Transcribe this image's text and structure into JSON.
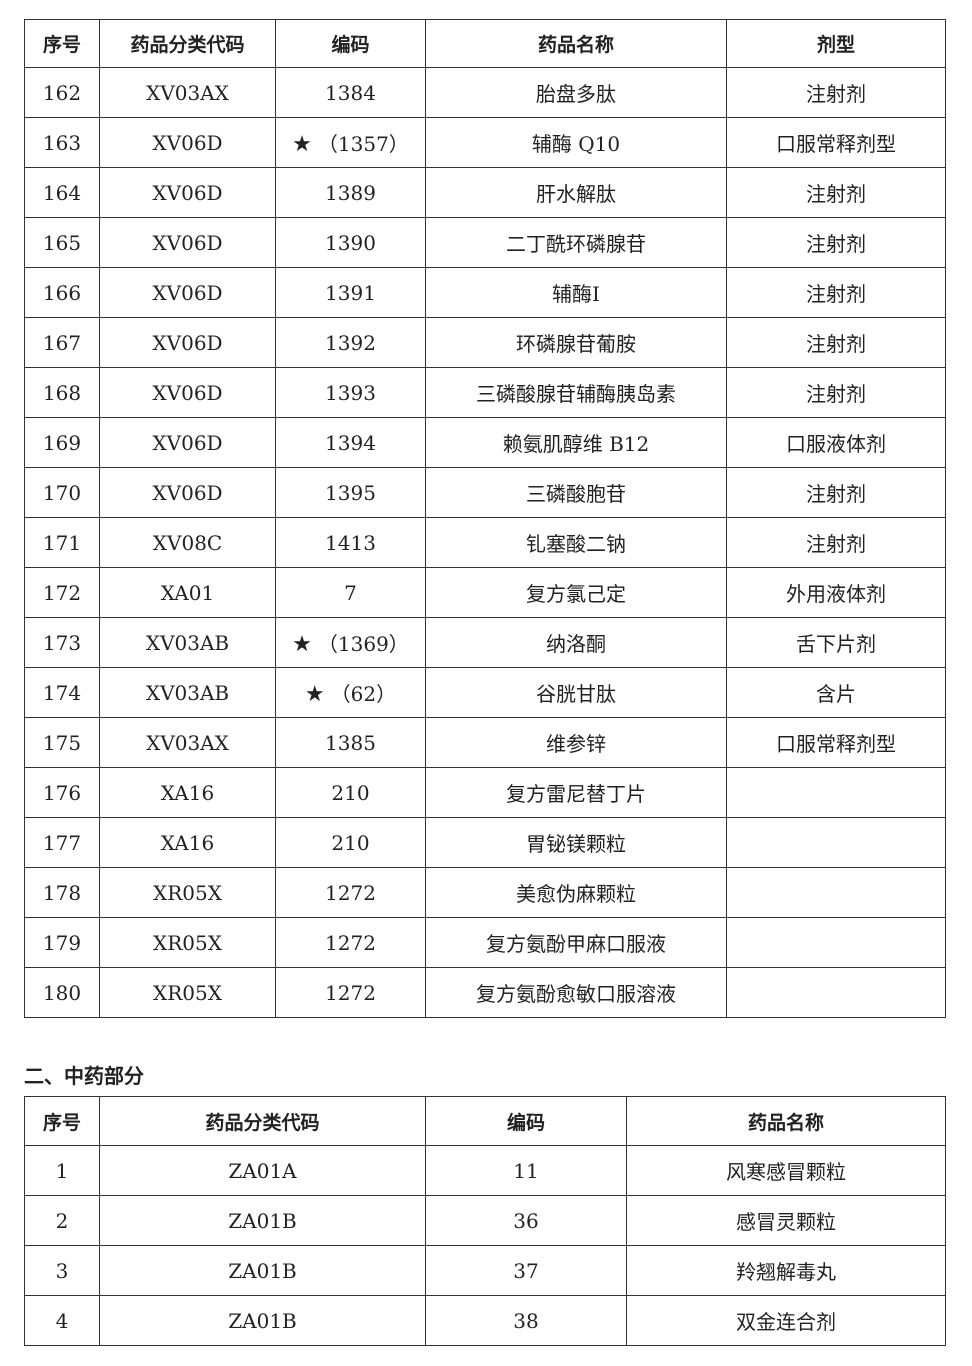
{
  "table1": {
    "headers": [
      "序号",
      "药品分类代码",
      "编码",
      "药品名称",
      "剂型"
    ],
    "rows": [
      {
        "no": "162",
        "cls": "XV03AX",
        "star": false,
        "code": "1384",
        "name": "胎盘多肽",
        "form": "注射剂"
      },
      {
        "no": "163",
        "cls": "XV06D",
        "star": true,
        "code": "（1357）",
        "name": "辅酶 Q10",
        "form": "口服常释剂型"
      },
      {
        "no": "164",
        "cls": "XV06D",
        "star": false,
        "code": "1389",
        "name": "肝水解肽",
        "form": "注射剂"
      },
      {
        "no": "165",
        "cls": "XV06D",
        "star": false,
        "code": "1390",
        "name": "二丁酰环磷腺苷",
        "form": "注射剂"
      },
      {
        "no": "166",
        "cls": "XV06D",
        "star": false,
        "code": "1391",
        "name": "辅酶I",
        "form": "注射剂"
      },
      {
        "no": "167",
        "cls": "XV06D",
        "star": false,
        "code": "1392",
        "name": "环磷腺苷葡胺",
        "form": "注射剂"
      },
      {
        "no": "168",
        "cls": "XV06D",
        "star": false,
        "code": "1393",
        "name": "三磷酸腺苷辅酶胰岛素",
        "form": "注射剂"
      },
      {
        "no": "169",
        "cls": "XV06D",
        "star": false,
        "code": "1394",
        "name": "赖氨肌醇维 B12",
        "form": "口服液体剂"
      },
      {
        "no": "170",
        "cls": "XV06D",
        "star": false,
        "code": "1395",
        "name": "三磷酸胞苷",
        "form": "注射剂"
      },
      {
        "no": "171",
        "cls": "XV08C",
        "star": false,
        "code": "1413",
        "name": "钆塞酸二钠",
        "form": "注射剂"
      },
      {
        "no": "172",
        "cls": "XA01",
        "star": false,
        "code": "7",
        "name": "复方氯己定",
        "form": "外用液体剂"
      },
      {
        "no": "173",
        "cls": "XV03AB",
        "star": true,
        "code": "（1369）",
        "name": "纳洛酮",
        "form": "舌下片剂"
      },
      {
        "no": "174",
        "cls": "XV03AB",
        "star": true,
        "code": "（62）",
        "name": "谷胱甘肽",
        "form": "含片"
      },
      {
        "no": "175",
        "cls": "XV03AX",
        "star": false,
        "code": "1385",
        "name": "维参锌",
        "form": "口服常释剂型"
      },
      {
        "no": "176",
        "cls": "XA16",
        "star": false,
        "code": "210",
        "name": "复方雷尼替丁片",
        "form": ""
      },
      {
        "no": "177",
        "cls": "XA16",
        "star": false,
        "code": "210",
        "name": "胃铋镁颗粒",
        "form": ""
      },
      {
        "no": "178",
        "cls": "XR05X",
        "star": false,
        "code": "1272",
        "name": "美愈伪麻颗粒",
        "form": ""
      },
      {
        "no": "179",
        "cls": "XR05X",
        "star": false,
        "code": "1272",
        "name": "复方氨酚甲麻口服液",
        "form": ""
      },
      {
        "no": "180",
        "cls": "XR05X",
        "star": false,
        "code": "1272",
        "name": "复方氨酚愈敏口服溶液",
        "form": ""
      }
    ]
  },
  "section2_title": "二、中药部分",
  "table2": {
    "headers": [
      "序号",
      "药品分类代码",
      "编码",
      "药品名称"
    ],
    "rows": [
      {
        "no": "1",
        "cls": "ZA01A",
        "code": "11",
        "name": "风寒感冒颗粒"
      },
      {
        "no": "2",
        "cls": "ZA01B",
        "code": "36",
        "name": "感冒灵颗粒"
      },
      {
        "no": "3",
        "cls": "ZA01B",
        "code": "37",
        "name": "羚翘解毒丸"
      },
      {
        "no": "4",
        "cls": "ZA01B",
        "code": "38",
        "name": "双金连合剂"
      }
    ]
  },
  "star_glyph": "★"
}
